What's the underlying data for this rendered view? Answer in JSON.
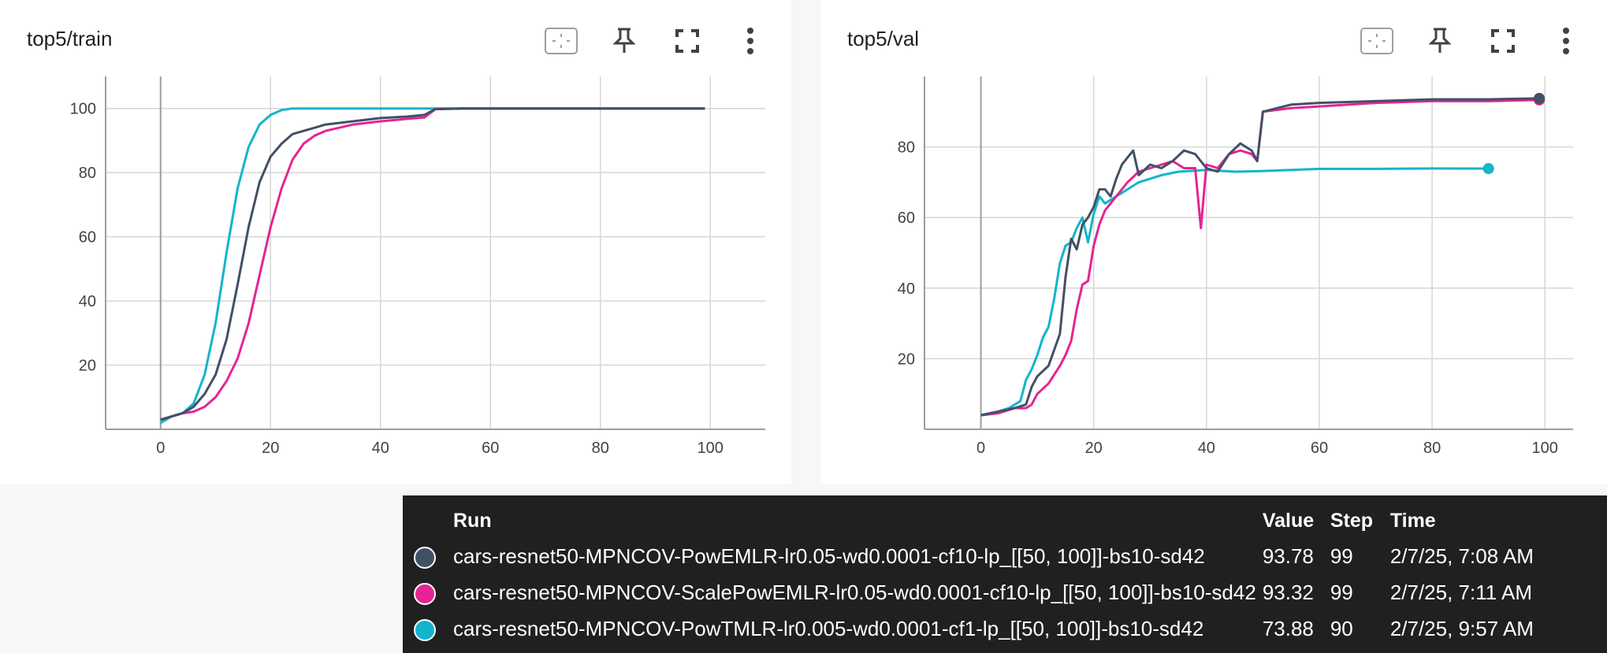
{
  "panels": [
    {
      "title": "top5/train"
    },
    {
      "title": "top5/val"
    }
  ],
  "icons": [
    "fit-domain-icon",
    "pin-icon",
    "fullscreen-icon",
    "more-vert-icon"
  ],
  "colors": {
    "run1": "#425066",
    "run2": "#e52592",
    "run3": "#12b5cb"
  },
  "chart_data": [
    {
      "type": "line",
      "title": "top5/train",
      "xlim": [
        -10,
        110
      ],
      "ylim": [
        0,
        110
      ],
      "x_ticks": [
        0,
        20,
        40,
        60,
        80,
        100
      ],
      "y_ticks": [
        20,
        40,
        60,
        80,
        100
      ],
      "grid": true,
      "series": [
        {
          "name": "cars-resnet50-MPNCOV-PowEMLR-lr0.05-wd0.0001-cf10-lp_[[50, 100]]-bs10-sd42",
          "x": [
            0,
            2,
            4,
            6,
            8,
            10,
            12,
            14,
            16,
            18,
            20,
            22,
            24,
            26,
            28,
            30,
            35,
            40,
            45,
            48,
            50,
            55,
            60,
            70,
            80,
            90,
            99
          ],
          "y": [
            3,
            4,
            5,
            7,
            11,
            17,
            28,
            45,
            63,
            77,
            85,
            89,
            92,
            93,
            94,
            95,
            96,
            97,
            97.5,
            98,
            99.8,
            100,
            100,
            100,
            100,
            100,
            100
          ]
        },
        {
          "name": "cars-resnet50-MPNCOV-ScalePowEMLR-lr0.05-wd0.0001-cf10-lp_[[50, 100]]-bs10-sd42",
          "x": [
            0,
            2,
            4,
            6,
            8,
            10,
            12,
            14,
            16,
            18,
            20,
            22,
            24,
            26,
            28,
            30,
            35,
            40,
            45,
            48,
            50,
            55,
            60,
            70,
            80,
            90,
            99
          ],
          "y": [
            3,
            4,
            5,
            5.5,
            7,
            10,
            15,
            22,
            33,
            48,
            63,
            75,
            84,
            89,
            91.5,
            93,
            95,
            96,
            96.8,
            97.2,
            99.8,
            100,
            100,
            100,
            100,
            100,
            100
          ]
        },
        {
          "name": "cars-resnet50-MPNCOV-PowTMLR-lr0.005-wd0.0001-cf1-lp_[[50, 100]]-bs10-sd42",
          "x": [
            0,
            2,
            4,
            6,
            8,
            10,
            12,
            14,
            16,
            18,
            20,
            22,
            24,
            26,
            28,
            30,
            35,
            40,
            45,
            50,
            55,
            60,
            70,
            80,
            90,
            99
          ],
          "y": [
            2,
            4,
            5,
            8,
            17,
            33,
            55,
            75,
            88,
            95,
            98,
            99.5,
            100,
            100,
            100,
            100,
            100,
            100,
            100,
            100,
            100,
            100,
            100,
            100,
            100,
            100
          ]
        }
      ]
    },
    {
      "type": "line",
      "title": "top5/val",
      "xlim": [
        -10,
        105
      ],
      "ylim": [
        0,
        100
      ],
      "x_ticks": [
        0,
        20,
        40,
        60,
        80,
        100
      ],
      "y_ticks": [
        20,
        40,
        60,
        80
      ],
      "grid": true,
      "series": [
        {
          "name": "cars-resnet50-MPNCOV-PowEMLR-lr0.05-wd0.0001-cf10-lp_[[50, 100]]-bs10-sd42",
          "x": [
            0,
            3,
            6,
            8,
            9,
            10,
            12,
            14,
            15,
            16,
            17,
            18,
            19,
            20,
            21,
            22,
            23,
            24,
            25,
            26,
            27,
            28,
            30,
            32,
            34,
            36,
            38,
            40,
            42,
            44,
            46,
            48,
            49,
            50,
            55,
            60,
            70,
            80,
            90,
            99
          ],
          "y": [
            4,
            5,
            6,
            7,
            12,
            15,
            18,
            27,
            43,
            54,
            51,
            58,
            60,
            63,
            68,
            68,
            66,
            71,
            75,
            77,
            79,
            72,
            75,
            74,
            76,
            79,
            78,
            74,
            73,
            78,
            81,
            79,
            76,
            90,
            92,
            92.5,
            93,
            93.5,
            93.5,
            93.78
          ]
        },
        {
          "name": "cars-resnet50-MPNCOV-ScalePowEMLR-lr0.05-wd0.0001-cf10-lp_[[50, 100]]-bs10-sd42",
          "x": [
            0,
            3,
            6,
            8,
            9,
            10,
            12,
            14,
            15,
            16,
            17,
            18,
            19,
            20,
            21,
            22,
            24,
            26,
            28,
            30,
            32,
            34,
            36,
            38,
            39,
            40,
            42,
            44,
            46,
            48,
            49,
            50,
            55,
            60,
            70,
            80,
            90,
            99
          ],
          "y": [
            4,
            4.5,
            6,
            6,
            7,
            10,
            13,
            18,
            21,
            25,
            34,
            41,
            42,
            52,
            58,
            62,
            66,
            70,
            73,
            74,
            75,
            76,
            74,
            74,
            57,
            75,
            74,
            78,
            79,
            78,
            76,
            90,
            91,
            91.5,
            92.5,
            93,
            93,
            93.32
          ]
        },
        {
          "name": "cars-resnet50-MPNCOV-PowTMLR-lr0.005-wd0.0001-cf1-lp_[[50, 100]]-bs10-sd42",
          "x": [
            0,
            3,
            5,
            7,
            8,
            9,
            10,
            11,
            12,
            13,
            14,
            15,
            16,
            17,
            18,
            19,
            20,
            21,
            22,
            24,
            26,
            28,
            30,
            32,
            35,
            40,
            45,
            50,
            55,
            60,
            70,
            80,
            90
          ],
          "y": [
            4,
            5,
            6,
            8,
            14,
            17,
            21,
            26,
            29,
            37,
            47,
            52,
            53,
            57,
            60,
            53,
            61,
            66,
            64,
            66,
            68,
            70,
            71,
            72,
            73,
            73.5,
            73,
            73.2,
            73.5,
            73.8,
            73.8,
            73.9,
            73.88
          ]
        }
      ]
    }
  ],
  "tooltip": {
    "headers": {
      "run": "Run",
      "value": "Value",
      "step": "Step",
      "time": "Time"
    },
    "rows": [
      {
        "run": "cars-resnet50-MPNCOV-PowEMLR-lr0.05-wd0.0001-cf10-lp_[[50, 100]]-bs10-sd42",
        "value": "93.78",
        "step": "99",
        "time": "2/7/25, 7:08 AM"
      },
      {
        "run": "cars-resnet50-MPNCOV-ScalePowEMLR-lr0.05-wd0.0001-cf10-lp_[[50, 100]]-bs10-sd42",
        "value": "93.32",
        "step": "99",
        "time": "2/7/25, 7:11 AM"
      },
      {
        "run": "cars-resnet50-MPNCOV-PowTMLR-lr0.005-wd0.0001-cf1-lp_[[50, 100]]-bs10-sd42",
        "value": "73.88",
        "step": "90",
        "time": "2/7/25, 9:57 AM"
      }
    ]
  }
}
